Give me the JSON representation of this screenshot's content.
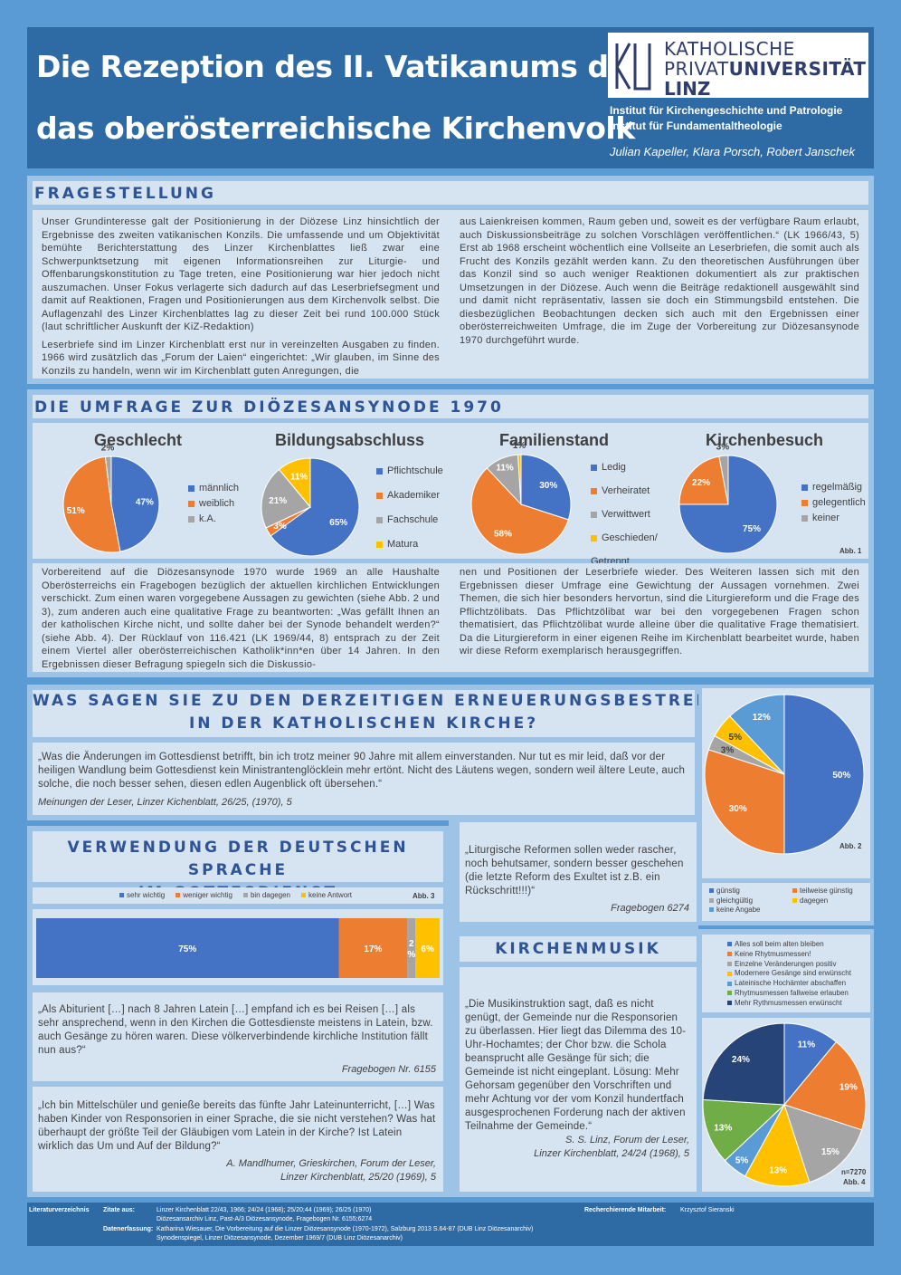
{
  "header": {
    "title_line1": "Die Rezeption des II. Vatikanums durch",
    "title_line2": "das oberösterreichische Kirchenvolk",
    "logo_line1": "KATHOLISCHE",
    "logo_line2a": "PRIVAT",
    "logo_line2b": "UNIVERSITÄT",
    "logo_line3": "LINZ",
    "institute1": "Institut für Kirchengeschichte und Patrologie",
    "institute2": "Institut für Fundamentaltheologie",
    "authors": "Julian Kapeller, Klara Porsch, Robert Janschek"
  },
  "fragestellung": {
    "title": "FRAGESTELLUNG",
    "col1_p1": "Unser Grundinteresse galt der Positionierung in der Diözese Linz hinsichtlich der Ergebnisse des zweiten vatikanischen Konzils. Die umfassende und um Objektivität bemühte Berichterstattung des Linzer Kirchenblattes ließ zwar eine Schwerpunktsetzung mit eigenen Informationsreihen zur Liturgie- und Offenbarungskonstitution zu Tage treten, eine Positionierung war hier jedoch nicht auszumachen. Unser Fokus verlagerte sich dadurch auf das Leserbriefsegment und damit auf Reaktionen, Fragen und Positionierungen aus dem Kirchenvolk selbst. Die Auflagenzahl des Linzer Kirchenblattes lag zu dieser Zeit bei rund 100.000 Stück (laut schriftlicher Auskunft der KiZ-Redaktion)",
    "col1_p2": "Leserbriefe sind im Linzer Kirchenblatt erst nur in vereinzelten Ausgaben zu finden. 1966 wird zusätzlich das „Forum der Laien“ eingerichtet: „Wir glauben, im Sinne des Konzils zu handeln, wenn wir im Kirchenblatt guten Anregungen, die",
    "col2": "aus Laienkreisen kommen, Raum geben und, soweit es der verfügbare Raum erlaubt, auch Diskussionsbeiträge zu solchen Vorschlägen veröffentlichen.“ (LK 1966/43, 5) Erst ab 1968 erscheint wöchentlich eine Vollseite an Leserbriefen, die somit auch als Frucht des Konzils gezählt werden kann. Zu den theoretischen Ausführungen über das Konzil sind so auch weniger Reaktionen dokumentiert als zur praktischen Umsetzungen in der Diözese. Auch wenn die Beiträge redaktionell ausgewählt sind und damit nicht repräsentativ, lassen sie doch ein Stimmungsbild entstehen. Die diesbezüglichen Beobachtungen decken sich auch mit den Ergebnissen einer oberösterreichweiten Umfrage, die im Zuge der Vorbereitung zur Diözesansynode 1970 durchgeführt wurde."
  },
  "umfrage": {
    "title": "DIE UMFRAGE ZUR DIÖZESANSYNODE 1970",
    "abb": "Abb. 1",
    "col1": "Vorbereitend auf die Diözesansynode 1970 wurde 1969 an alle Haushalte Oberösterreichs ein Fragebogen bezüglich der aktuellen kirchlichen Entwicklungen verschickt. Zum einen waren vorgegebene Aussagen zu gewichten (siehe Abb. 2 und 3), zum anderen auch eine qualitative Frage zu beantworten: „Was gefällt Ihnen an der katholischen Kirche nicht, und sollte daher bei der Synode behandelt werden?“ (siehe Abb. 4). Der Rücklauf von 116.421 (LK 1969/44, 8) entsprach zu der Zeit einem Viertel aller oberösterreichischen Katholik*inn*en über 14 Jahren. In den Ergebnissen dieser Befragung spiegeln sich die Diskussio-",
    "col2": "nen und Positionen der Leserbriefe wieder. Des Weiteren lassen sich mit den Ergebnissen dieser Umfrage eine Gewichtung der Aussagen vornehmen. Zwei Themen, die sich hier besonders hervortun, sind die Liturgiereform und die Frage des Pflichtzölibats. Das Pflichtzölibat war bei den vorgegebenen Fragen schon thematisiert, das Pflichtzölibat wurde alleine über die qualitative Frage thematisiert. Da die Liturgiereform in einer eigenen Reihe im Kirchenblatt bearbeitet wurde, haben wir diese Reform exemplarisch herausgegriffen."
  },
  "erneuerung": {
    "title_line1": "WAS SAGEN SIE ZU DEN DERZEITIGEN ERNEUERUNGSBESTREBUNGEN",
    "title_line2": "IN DER KATHOLISCHEN KIRCHE?",
    "quote": "„Was die Änderungen im Gottesdienst betrifft, bin ich trotz meiner 90 Jahre mit allem einverstanden. Nur tut es mir leid, daß vor der heiligen Wandlung beim Gottesdienst kein Ministrantenglöcklein mehr ertönt. Nicht des Läutens wegen, sondern weil ältere Leute, auch solche, die noch besser sehen, diesen edlen Augenblick oft übersehen.“",
    "source": "Meinungen der Leser, Linzer Kichenblatt, 26/25, (1970), 5",
    "abb": "Abb. 2"
  },
  "sprache": {
    "title_line1": "VERWENDUNG DER DEUTSCHEN SPRACHE",
    "title_line2": "IM GOTTESDIENST",
    "abb": "Abb. 3",
    "quote1": "„Als Abiturient […] nach 8 Jahren Latein […] empfand ich es bei Reisen […] als sehr ansprechend, wenn in den Kirchen die Gottesdienste meistens in Latein, bzw. auch Gesänge zu hören waren. Diese völkerverbindende kirchliche Institution fällt nun aus?“",
    "source1": "Fragebogen Nr. 6155",
    "quote2": "„Ich bin Mittelschüler und genieße bereits das fünfte Jahr Lateinunterricht, […] Was haben Kinder von Responsorien in einer Sprache, die sie nicht verstehen? Was hat überhaupt der größte Teil der Gläubigen vom Latein in der Kirche? Ist Latein wirklich das Um und Auf der Bildung?“",
    "source2_line1": "A. Mandlhumer, Grieskirchen, Forum der Leser,",
    "source2_line2": "Linzer Kirchenblatt, 25/20 (1969), 5"
  },
  "liturgie": {
    "quote": "„Liturgische Reformen sollen weder rascher, noch behutsamer, sondern besser geschehen (die letzte Reform des Exultet ist z.B. ein Rückschritt!!!)“",
    "source": "Fragebogen 6274"
  },
  "kirchenmusik": {
    "title": "KIRCHENMUSIK",
    "quote": "„Die Musikinstruktion sagt, daß es nicht genügt, der Gemeinde nur die Responsorien zu überlassen. Hier liegt das Dilemma des 10-Uhr-Hochamtes; der Chor bzw. die Schola beansprucht alle Gesänge für sich; die Gemeinde ist nicht eingeplant. Lösung: Mehr Gehorsam gegenüber den Vorschriften und mehr Achtung vor der vom Konzil hundertfach ausgesprochenen Forderung nach der aktiven Teilnahme der Gemeinde.“",
    "source_line1": "S. S. Linz, Forum der Leser,",
    "source_line2": "Linzer Kirchenblatt, 24/24 (1968), 5",
    "n": "n=7270",
    "abb": "Abb. 4"
  },
  "footer": {
    "lit": "Literaturverzeichnis",
    "zitate": "Zitate aus:",
    "zitate_1": "Linzer Kirchenblatt 22/43, 1966; 24/24 (1968); 25/20;44 (1969); 26/25 (1970)",
    "zitate_2": "Diözesansarchiv Linz, Past-A/3 Diözesansynode, Fragebogen Nr. 6155;6274",
    "daten": "Datenerfassung:",
    "daten_1": "Katharina Wiesauer, Die Vorbereitung auf die Linzer Diözesansynode (1970-1972), Salzburg 2013 S.64-87 (DUB Linz Diözesanarchiv)",
    "daten_2": "Synodenspiegel, Linzer Diözesansynode, Dezember 1969/7 (DUB Linz Diözesanarchiv)",
    "recherche": "Recherchierende Mitarbeit:",
    "recherche_name": "Krzysztof Sieranski"
  },
  "colors": {
    "blue": "#4472c4",
    "orange": "#ed7d31",
    "gray": "#a5a5a5",
    "yellow": "#ffc000",
    "lightblue": "#5b9bd5",
    "green": "#70ad47",
    "navy": "#264478"
  },
  "chart_data": [
    {
      "type": "pie",
      "title": "Geschlecht",
      "labels": [
        "männlich",
        "weiblich",
        "k.A."
      ],
      "values": [
        47,
        51,
        2
      ],
      "colors": [
        "#4472c4",
        "#ed7d31",
        "#a5a5a5"
      ],
      "value_labels": [
        "47%",
        "51%",
        "2%"
      ]
    },
    {
      "type": "pie",
      "title": "Bildungsabschluss",
      "labels": [
        "Pflichtschule",
        "Akademiker",
        "Fachschule",
        "Matura"
      ],
      "values": [
        65,
        3,
        21,
        11
      ],
      "colors": [
        "#4472c4",
        "#ed7d31",
        "#a5a5a5",
        "#ffc000"
      ],
      "value_labels": [
        "65%",
        "3%",
        "21%",
        "11%"
      ]
    },
    {
      "type": "pie",
      "title": "Familienstand",
      "labels": [
        "Ledig",
        "Verheiratet",
        "Verwittwert",
        "Geschieden/ Getrennt"
      ],
      "values": [
        30,
        58,
        11,
        1
      ],
      "colors": [
        "#4472c4",
        "#ed7d31",
        "#a5a5a5",
        "#ffc000"
      ],
      "value_labels": [
        "30%",
        "58%",
        "11%",
        "1%"
      ]
    },
    {
      "type": "pie",
      "title": "Kirchenbesuch",
      "labels": [
        "regelmäßig",
        "gelegentlich",
        "keiner"
      ],
      "values": [
        75,
        22,
        3
      ],
      "colors": [
        "#4472c4",
        "#ed7d31",
        "#a5a5a5"
      ],
      "value_labels": [
        "75%",
        "22%",
        "3%"
      ]
    },
    {
      "type": "pie",
      "labels": [
        "günstig",
        "teilweise günstig",
        "gleichgültig",
        "dagegen",
        "keine Angabe"
      ],
      "values": [
        50,
        30,
        3,
        5,
        12
      ],
      "colors": [
        "#4472c4",
        "#ed7d31",
        "#a5a5a5",
        "#ffc000",
        "#5b9bd5"
      ],
      "value_labels": [
        "50%",
        "30%",
        "3%",
        "5%",
        "12%"
      ]
    },
    {
      "type": "bar",
      "orientation": "horizontal-stacked",
      "labels": [
        "sehr wichtig",
        "weniger wichtig",
        "bin dagegen",
        "keine Antwort"
      ],
      "values": [
        75,
        17,
        2,
        6
      ],
      "colors": [
        "#4472c4",
        "#ed7d31",
        "#a5a5a5",
        "#ffc000"
      ],
      "value_labels": [
        "75%",
        "17%",
        "2%",
        "6%"
      ]
    },
    {
      "type": "pie",
      "labels": [
        "Alles soll beim alten bleiben",
        "Keine Rhytmusmessen!",
        "Einzelne Veränderungen positiv",
        "Modernere Gesänge sind erwünscht",
        "Lateinische Hochämter abschaffen",
        "Rhytmusmessen fallweise erlauben",
        "Mehr Rythmusmessen erwünscht"
      ],
      "values": [
        11,
        19,
        15,
        13,
        5,
        13,
        24
      ],
      "colors": [
        "#4472c4",
        "#ed7d31",
        "#a5a5a5",
        "#ffc000",
        "#5b9bd5",
        "#70ad47",
        "#264478"
      ],
      "value_labels": [
        "11%",
        "19%",
        "15%",
        "13%",
        "5%",
        "13%",
        "24%"
      ]
    }
  ]
}
